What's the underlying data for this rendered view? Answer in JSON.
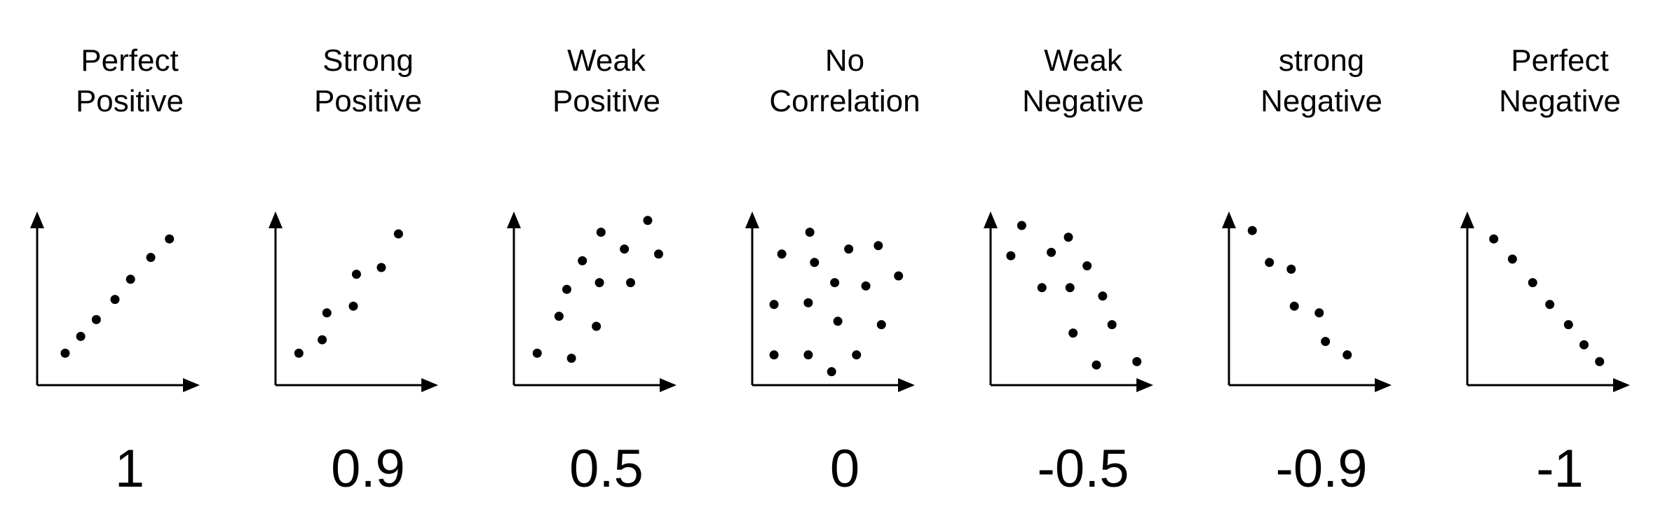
{
  "panels": [
    {
      "title_line1": "Perfect",
      "title_line2": "Positive",
      "coefficient": "1",
      "chart_data": {
        "type": "scatter",
        "xlim": [
          0,
          10
        ],
        "ylim": [
          0,
          10
        ],
        "points": [
          [
            1.8,
            1.9
          ],
          [
            2.8,
            2.9
          ],
          [
            3.8,
            3.9
          ],
          [
            5.0,
            5.1
          ],
          [
            6.0,
            6.3
          ],
          [
            7.3,
            7.6
          ],
          [
            8.5,
            8.7
          ]
        ]
      }
    },
    {
      "title_line1": "Strong",
      "title_line2": "Positive",
      "coefficient": "0.9",
      "chart_data": {
        "type": "scatter",
        "xlim": [
          0,
          10
        ],
        "ylim": [
          0,
          10
        ],
        "points": [
          [
            1.5,
            1.9
          ],
          [
            3.0,
            2.7
          ],
          [
            3.3,
            4.3
          ],
          [
            5.0,
            4.7
          ],
          [
            5.2,
            6.6
          ],
          [
            6.8,
            7.0
          ],
          [
            7.9,
            9.0
          ]
        ]
      }
    },
    {
      "title_line1": "Weak",
      "title_line2": "Positive",
      "coefficient": "0.5",
      "chart_data": {
        "type": "scatter",
        "xlim": [
          0,
          10
        ],
        "ylim": [
          0,
          10
        ],
        "points": [
          [
            1.5,
            1.9
          ],
          [
            3.7,
            1.6
          ],
          [
            2.9,
            4.1
          ],
          [
            5.3,
            3.5
          ],
          [
            3.4,
            5.7
          ],
          [
            4.4,
            7.4
          ],
          [
            5.5,
            6.1
          ],
          [
            5.6,
            9.1
          ],
          [
            7.1,
            8.1
          ],
          [
            7.5,
            6.1
          ],
          [
            8.6,
            9.8
          ],
          [
            9.3,
            7.8
          ]
        ]
      }
    },
    {
      "title_line1": "No",
      "title_line2": "Correlation",
      "coefficient": "0",
      "chart_data": {
        "type": "scatter",
        "xlim": [
          0,
          10
        ],
        "ylim": [
          0,
          10
        ],
        "points": [
          [
            1.4,
            1.8
          ],
          [
            3.6,
            1.8
          ],
          [
            5.1,
            0.8
          ],
          [
            6.7,
            1.8
          ],
          [
            1.4,
            4.8
          ],
          [
            3.6,
            4.9
          ],
          [
            5.5,
            3.8
          ],
          [
            8.3,
            3.6
          ],
          [
            5.3,
            6.1
          ],
          [
            7.3,
            5.9
          ],
          [
            9.4,
            6.5
          ],
          [
            1.9,
            7.8
          ],
          [
            4.0,
            7.3
          ],
          [
            6.2,
            8.1
          ],
          [
            8.1,
            8.3
          ],
          [
            3.7,
            9.1
          ]
        ]
      }
    },
    {
      "title_line1": "Weak",
      "title_line2": "Negative",
      "coefficient": "-0.5",
      "chart_data": {
        "type": "scatter",
        "xlim": [
          0,
          10
        ],
        "ylim": [
          0,
          10
        ],
        "points": [
          [
            1.3,
            7.7
          ],
          [
            2.0,
            9.5
          ],
          [
            3.3,
            5.8
          ],
          [
            3.9,
            7.9
          ],
          [
            5.0,
            8.8
          ],
          [
            5.1,
            5.8
          ],
          [
            6.2,
            7.1
          ],
          [
            5.3,
            3.1
          ],
          [
            7.2,
            5.3
          ],
          [
            7.8,
            3.6
          ],
          [
            6.8,
            1.2
          ],
          [
            9.4,
            1.4
          ]
        ]
      }
    },
    {
      "title_line1": "strong",
      "title_line2": "Negative",
      "coefficient": "-0.9",
      "chart_data": {
        "type": "scatter",
        "xlim": [
          0,
          10
        ],
        "ylim": [
          0,
          10
        ],
        "points": [
          [
            1.5,
            9.2
          ],
          [
            2.6,
            7.3
          ],
          [
            4.0,
            6.9
          ],
          [
            4.2,
            4.7
          ],
          [
            5.8,
            4.3
          ],
          [
            6.2,
            2.6
          ],
          [
            7.6,
            1.8
          ]
        ]
      }
    },
    {
      "title_line1": "Perfect",
      "title_line2": "Negative",
      "coefficient": "-1",
      "chart_data": {
        "type": "scatter",
        "xlim": [
          0,
          10
        ],
        "ylim": [
          0,
          10
        ],
        "points": [
          [
            1.7,
            8.7
          ],
          [
            2.9,
            7.5
          ],
          [
            4.2,
            6.1
          ],
          [
            5.3,
            4.8
          ],
          [
            6.5,
            3.6
          ],
          [
            7.5,
            2.4
          ],
          [
            8.5,
            1.4
          ]
        ]
      }
    }
  ]
}
